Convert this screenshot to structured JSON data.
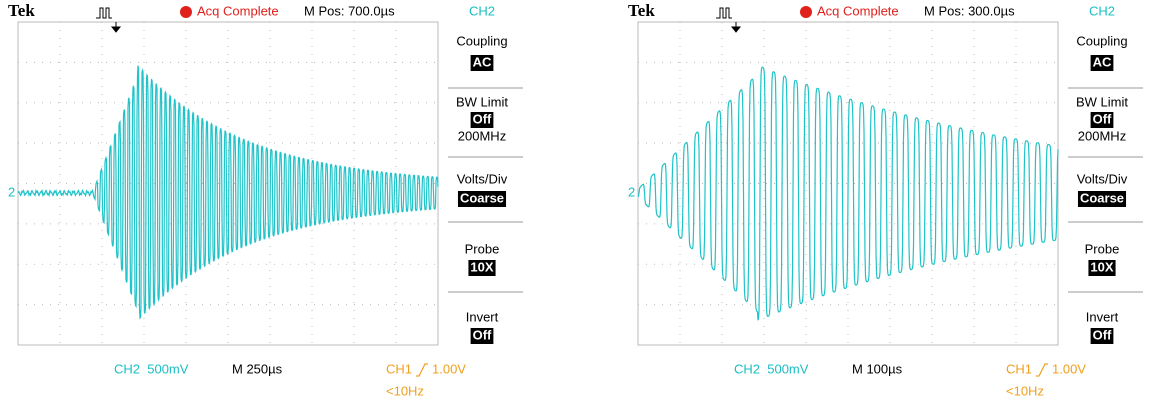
{
  "screens": [
    {
      "brand": "Tek",
      "status": "Acq Complete",
      "position": "M Pos: 700.0µs",
      "channel": "CH2",
      "menu": [
        {
          "label": "Coupling",
          "value": "AC"
        },
        {
          "label": "BW Limit",
          "value": "Off",
          "note": "200MHz"
        },
        {
          "label": "Volts/Div",
          "value": "Coarse"
        },
        {
          "label": "Probe",
          "value": "10X"
        },
        {
          "label": "Invert",
          "value": "Off"
        }
      ],
      "marker": "2",
      "channel_scale": "CH2  500mV",
      "timebase": "M 250µs",
      "trigger_source": "CH1",
      "trigger_level": "1.00V",
      "trigger_frequency": "<10Hz"
    },
    {
      "brand": "Tek",
      "status": "Acq Complete",
      "position": "M Pos: 300.0µs",
      "channel": "CH2",
      "menu": [
        {
          "label": "Coupling",
          "value": "AC"
        },
        {
          "label": "BW Limit",
          "value": "Off",
          "note": "200MHz"
        },
        {
          "label": "Volts/Div",
          "value": "Coarse"
        },
        {
          "label": "Probe",
          "value": "10X"
        },
        {
          "label": "Invert",
          "value": "Off"
        }
      ],
      "marker": "2",
      "channel_scale": "CH2  500mV",
      "timebase": "M 100µs",
      "trigger_source": "CH1",
      "trigger_level": "1.00V",
      "trigger_frequency": "<10Hz"
    }
  ]
}
